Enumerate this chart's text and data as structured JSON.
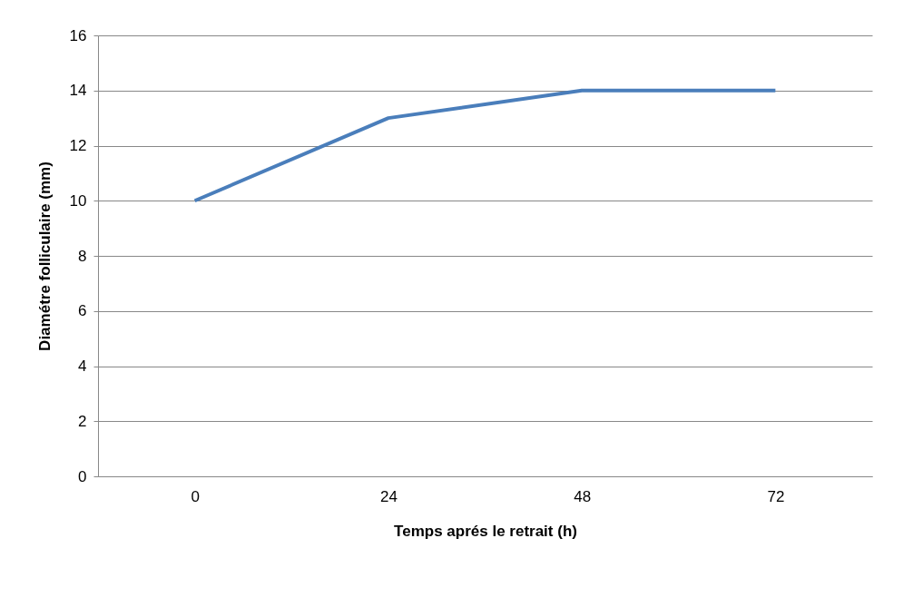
{
  "chart_data": {
    "type": "line",
    "xlabel": "Temps aprés le retrait (h)",
    "ylabel": "Diamétre folliculaire (mm)",
    "categories": [
      "0",
      "24",
      "48",
      "72"
    ],
    "series": [
      {
        "color": "#4a7ebb",
        "values": [
          10,
          13,
          14,
          14
        ]
      }
    ],
    "ylim": [
      0,
      16
    ],
    "yticks": [
      0,
      2,
      4,
      6,
      8,
      10,
      12,
      14,
      16
    ],
    "grid": "y",
    "legend": false,
    "marker": "none",
    "line_style": "solid"
  }
}
